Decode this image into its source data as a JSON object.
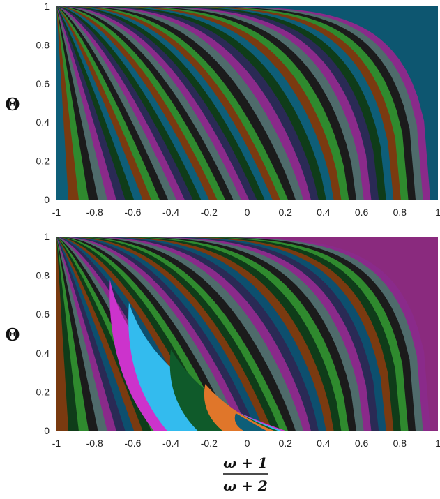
{
  "chart_data": [
    {
      "type": "heatmap",
      "x_range": [
        -1,
        1
      ],
      "y_range": [
        0,
        1
      ],
      "x_ticks": [
        "-1",
        "-0.8",
        "-0.6",
        "-0.4",
        "-0.2",
        "0",
        "0.2",
        "0.4",
        "0.6",
        "0.8",
        "1"
      ],
      "y_ticks": [
        "0",
        "0.2",
        "0.4",
        "0.6",
        "0.8",
        "1"
      ],
      "ylabel": "Θ",
      "xlabel": "",
      "grid": false,
      "legend": "none",
      "background_color": "#0d5670",
      "band_colors": [
        "#0f3c19",
        "#0e5e78",
        "#7a3a10",
        "#2f8a2e",
        "#1b1b1b",
        "#4f6b6b",
        "#8a2a8a",
        "#2a2a55"
      ]
    },
    {
      "type": "heatmap",
      "x_range": [
        -1,
        1
      ],
      "y_range": [
        0,
        1
      ],
      "x_ticks": [
        "-1",
        "-0.8",
        "-0.6",
        "-0.4",
        "-0.2",
        "0",
        "0.2",
        "0.4",
        "0.6",
        "0.8",
        "1"
      ],
      "y_ticks": [
        "0",
        "0.2",
        "0.4",
        "0.6",
        "0.8",
        "1"
      ],
      "ylabel": "Θ",
      "xlabel": "",
      "grid": false,
      "legend": "none",
      "background_color": "#8a2a7e",
      "band_colors": [
        "#0d4f6e",
        "#7a3a10",
        "#0f3c19",
        "#2f8a2e",
        "#1b1b1b",
        "#4f6b6b",
        "#8a2a8a",
        "#2a2a55"
      ],
      "lobe_colors": [
        "#cc33cc",
        "#33bbee",
        "#0f5a2a",
        "#e0762a",
        "#0e5e78"
      ]
    }
  ],
  "shared_xlabel": {
    "numerator": "ω + 1",
    "denominator": "ω + 2"
  }
}
